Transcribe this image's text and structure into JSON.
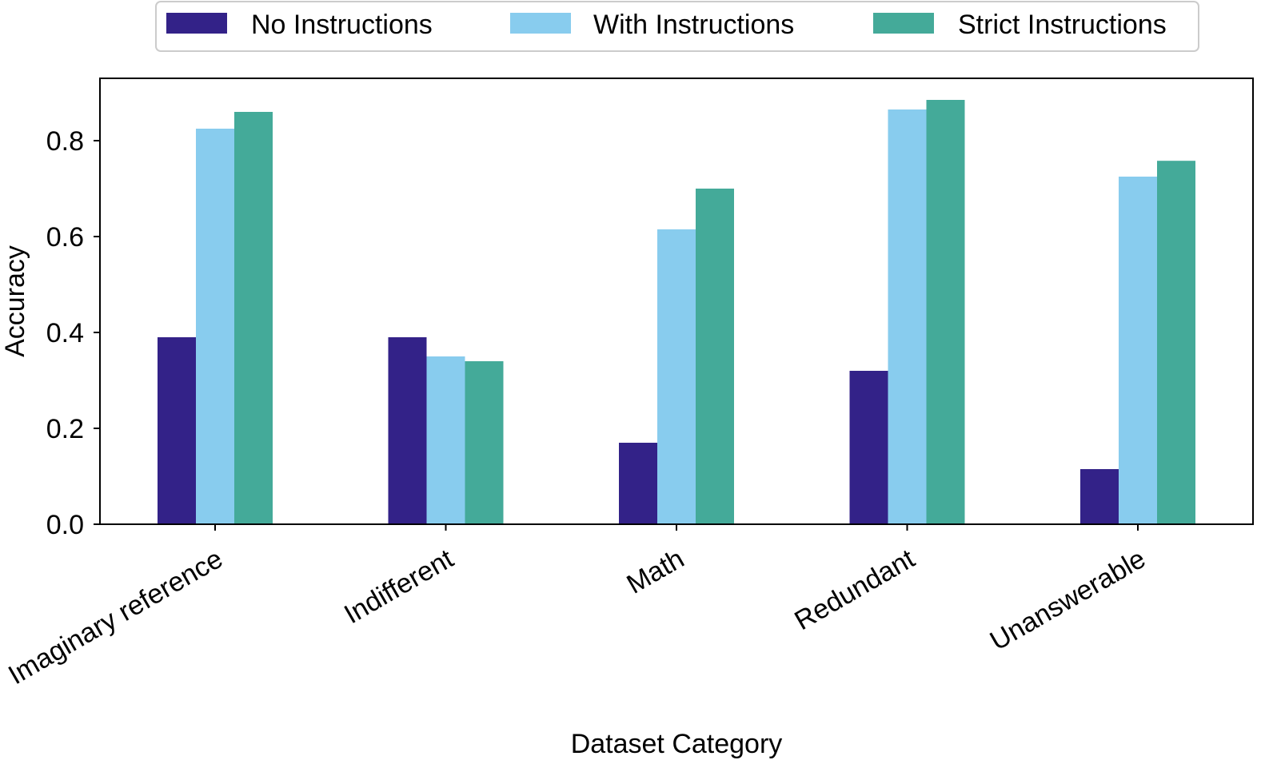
{
  "chart_data": {
    "type": "bar",
    "title": "",
    "xlabel": "Dataset Category",
    "ylabel": "Accuracy",
    "categories": [
      "Imaginary reference",
      "Indifferent",
      "Math",
      "Redundant",
      "Unanswerable"
    ],
    "series": [
      {
        "name": "No Instructions",
        "color": "#332288",
        "values": [
          0.39,
          0.39,
          0.17,
          0.32,
          0.115
        ]
      },
      {
        "name": "With Instructions",
        "color": "#88CCEE",
        "values": [
          0.825,
          0.35,
          0.615,
          0.865,
          0.725
        ]
      },
      {
        "name": "Strict Instructions",
        "color": "#44AA99",
        "values": [
          0.86,
          0.34,
          0.7,
          0.885,
          0.758
        ]
      }
    ],
    "ylim": [
      0,
      0.93
    ],
    "yticks": [
      0.0,
      0.2,
      0.4,
      0.6,
      0.8
    ],
    "ytick_labels": [
      "0.0",
      "0.2",
      "0.4",
      "0.6",
      "0.8"
    ],
    "x_tick_label_rotation": "30 degrees",
    "grid": false,
    "legend_position": "top-center"
  }
}
